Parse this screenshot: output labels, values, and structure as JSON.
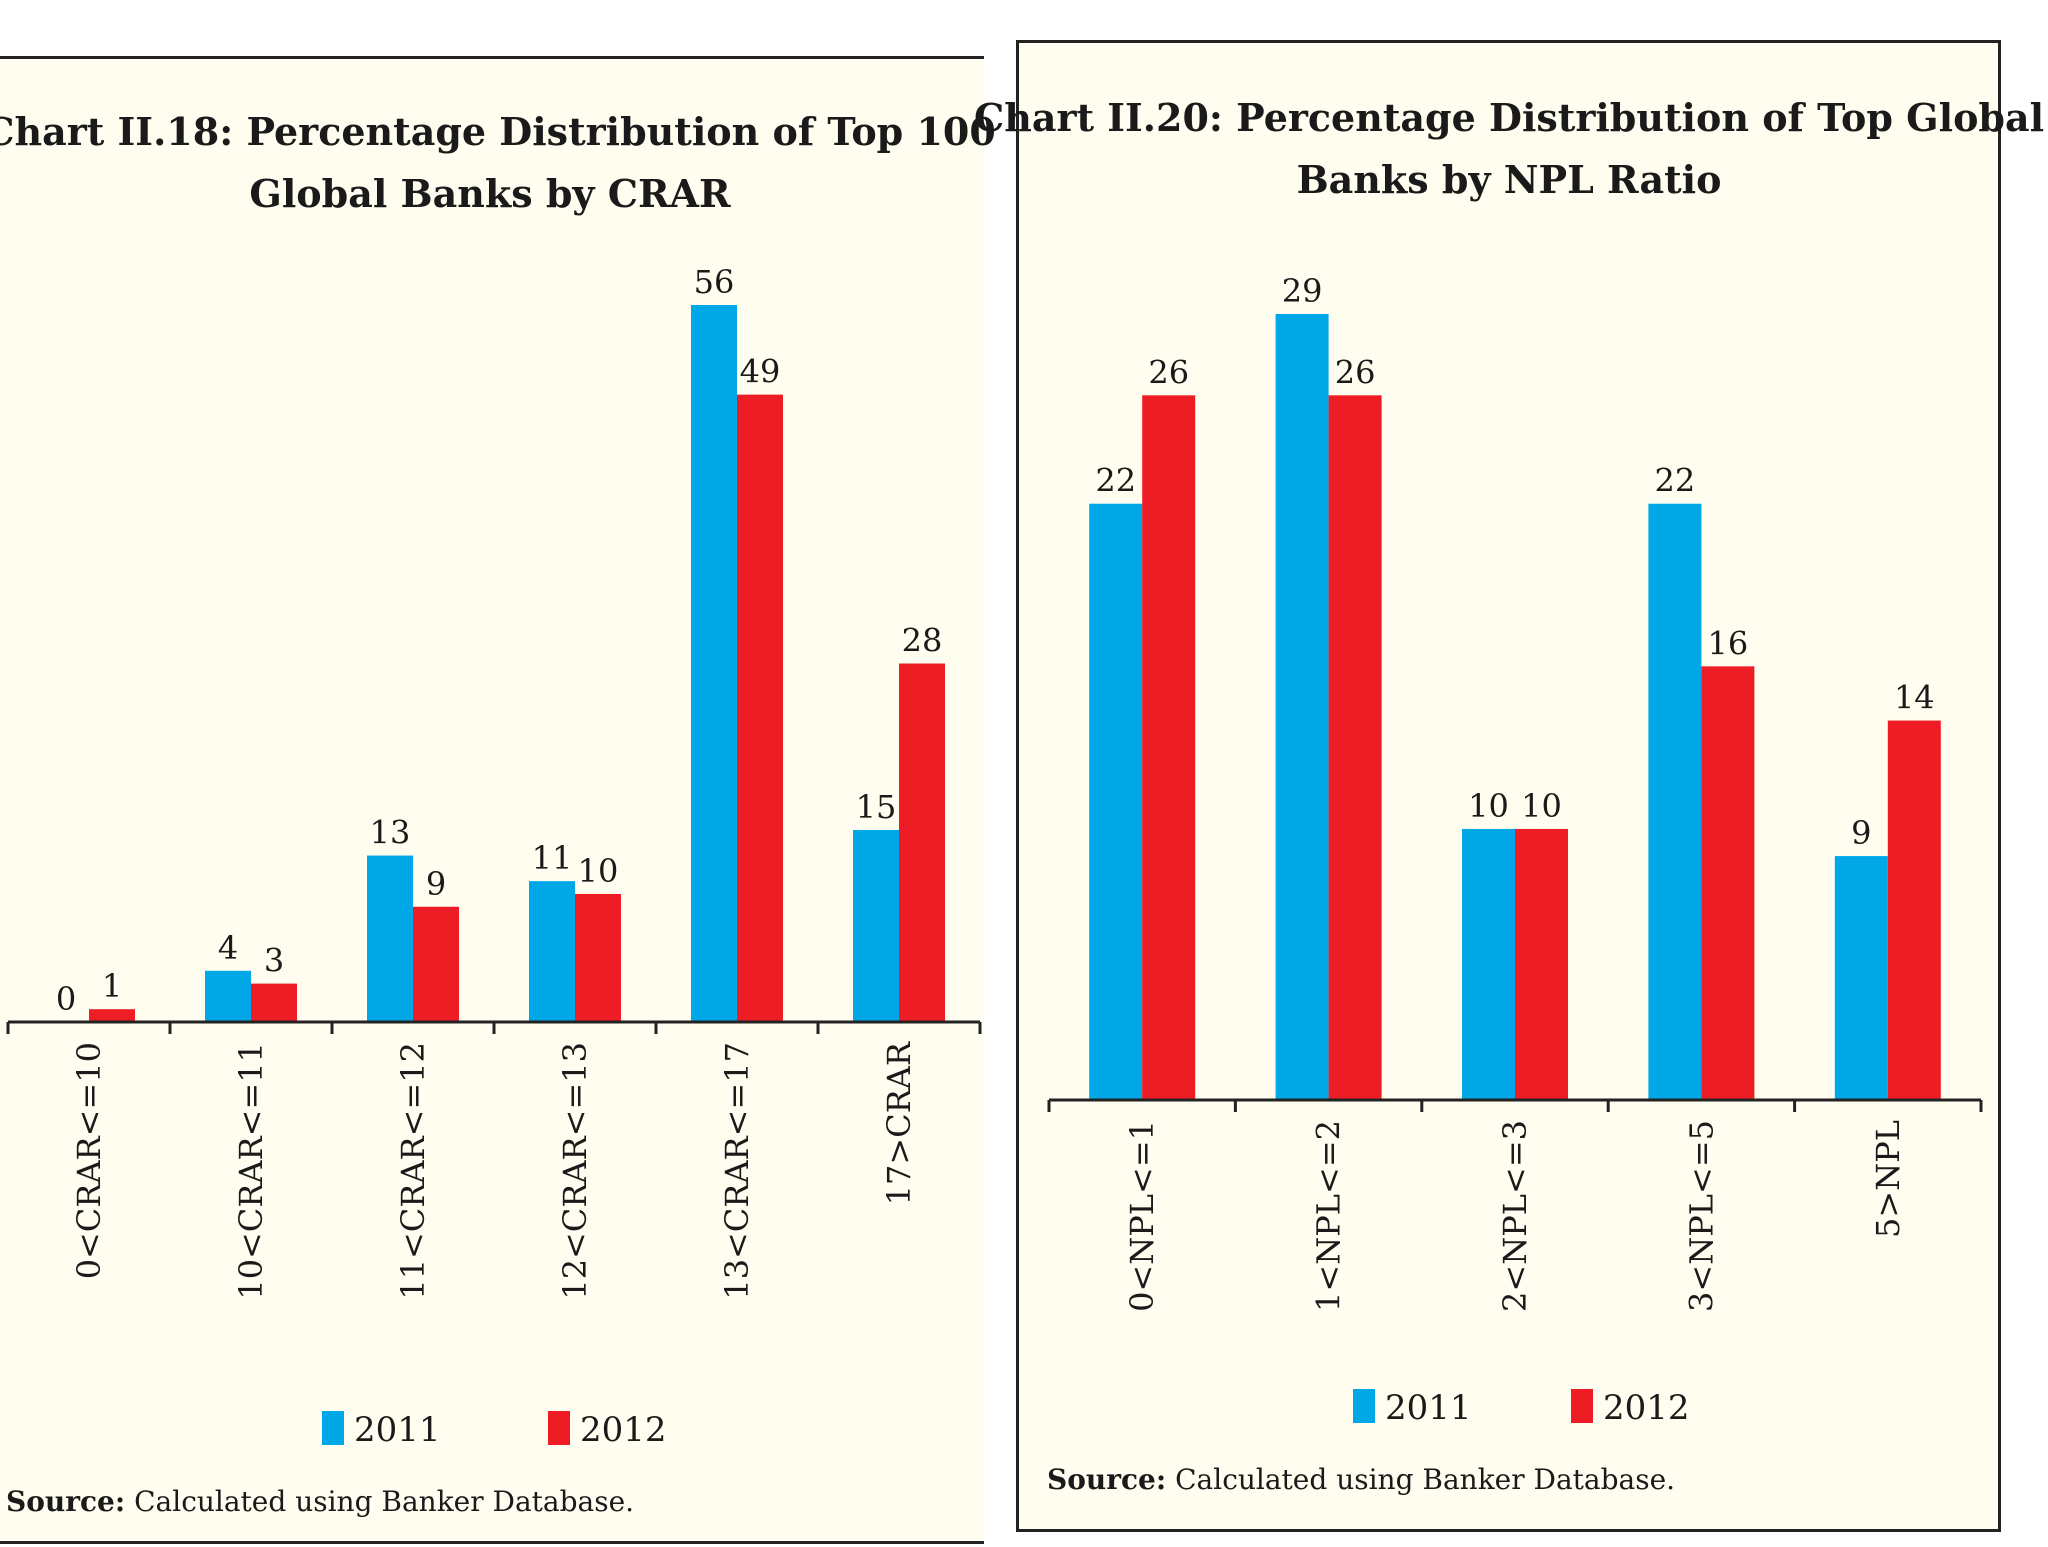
{
  "chart_data": [
    {
      "type": "bar",
      "title_lines": [
        "Chart II.18: Percentage Distribution of Top 100",
        "Global Banks by CRAR"
      ],
      "categories": [
        "0<CRAR<=10",
        "10<CRAR<=11",
        "11<CRAR<=12",
        "12<CRAR<=13",
        "13<CRAR<=17",
        "17>CRAR"
      ],
      "series": [
        {
          "name": "2011",
          "values": [
            0,
            4,
            13,
            11,
            56,
            15
          ],
          "color": "#00a8e8"
        },
        {
          "name": "2012",
          "values": [
            1,
            3,
            9,
            10,
            49,
            28
          ],
          "color": "#ee1c25"
        }
      ],
      "ylim": [
        0,
        56
      ],
      "source_label": "Source:",
      "source_text": "Calculated using Banker Database."
    },
    {
      "type": "bar",
      "title_lines": [
        "Chart II.20: Percentage Distribution of Top Global",
        "Banks by NPL Ratio"
      ],
      "categories": [
        "0<NPL<=1",
        "1<NPL<=2",
        "2<NPL<=3",
        "3<NPL<=5",
        "5>NPL"
      ],
      "series": [
        {
          "name": "2011",
          "values": [
            22,
            29,
            10,
            22,
            9
          ],
          "color": "#00a8e8"
        },
        {
          "name": "2012",
          "values": [
            26,
            26,
            10,
            16,
            14
          ],
          "color": "#ee1c25"
        }
      ],
      "ylim": [
        0,
        29
      ],
      "source_label": "Source:",
      "source_text": "Calculated using Banker Database."
    }
  ]
}
